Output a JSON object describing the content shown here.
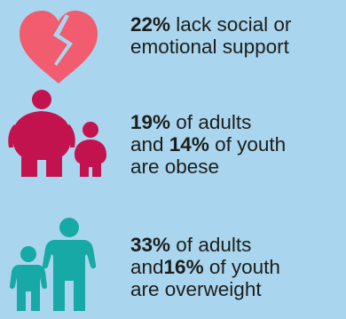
{
  "colors": {
    "background": "#a9d6ee",
    "heart": "#f15c6e",
    "obese": "#c3134f",
    "overweight": "#17a9a5",
    "text": "#1d1d1b"
  },
  "icons": {
    "support": "broken-heart-icon",
    "obese": "obese-adult-and-child-icon",
    "overweight": "overweight-adult-and-child-icon"
  },
  "stats": {
    "support": {
      "pct": "22%",
      "line1_rest": " lack social or",
      "line2": "emotional support"
    },
    "obese": {
      "pct_adults": "19%",
      "line1_rest": " of adults",
      "line2_pre": "and ",
      "pct_youth": "14%",
      "line2_rest": " of youth",
      "line3": "are obese"
    },
    "overweight": {
      "pct_adults": "33%",
      "line1_rest": " of adults",
      "line2_pre": "and",
      "pct_youth": "16%",
      "line2_rest": " of youth",
      "line3": "are overweight"
    }
  }
}
